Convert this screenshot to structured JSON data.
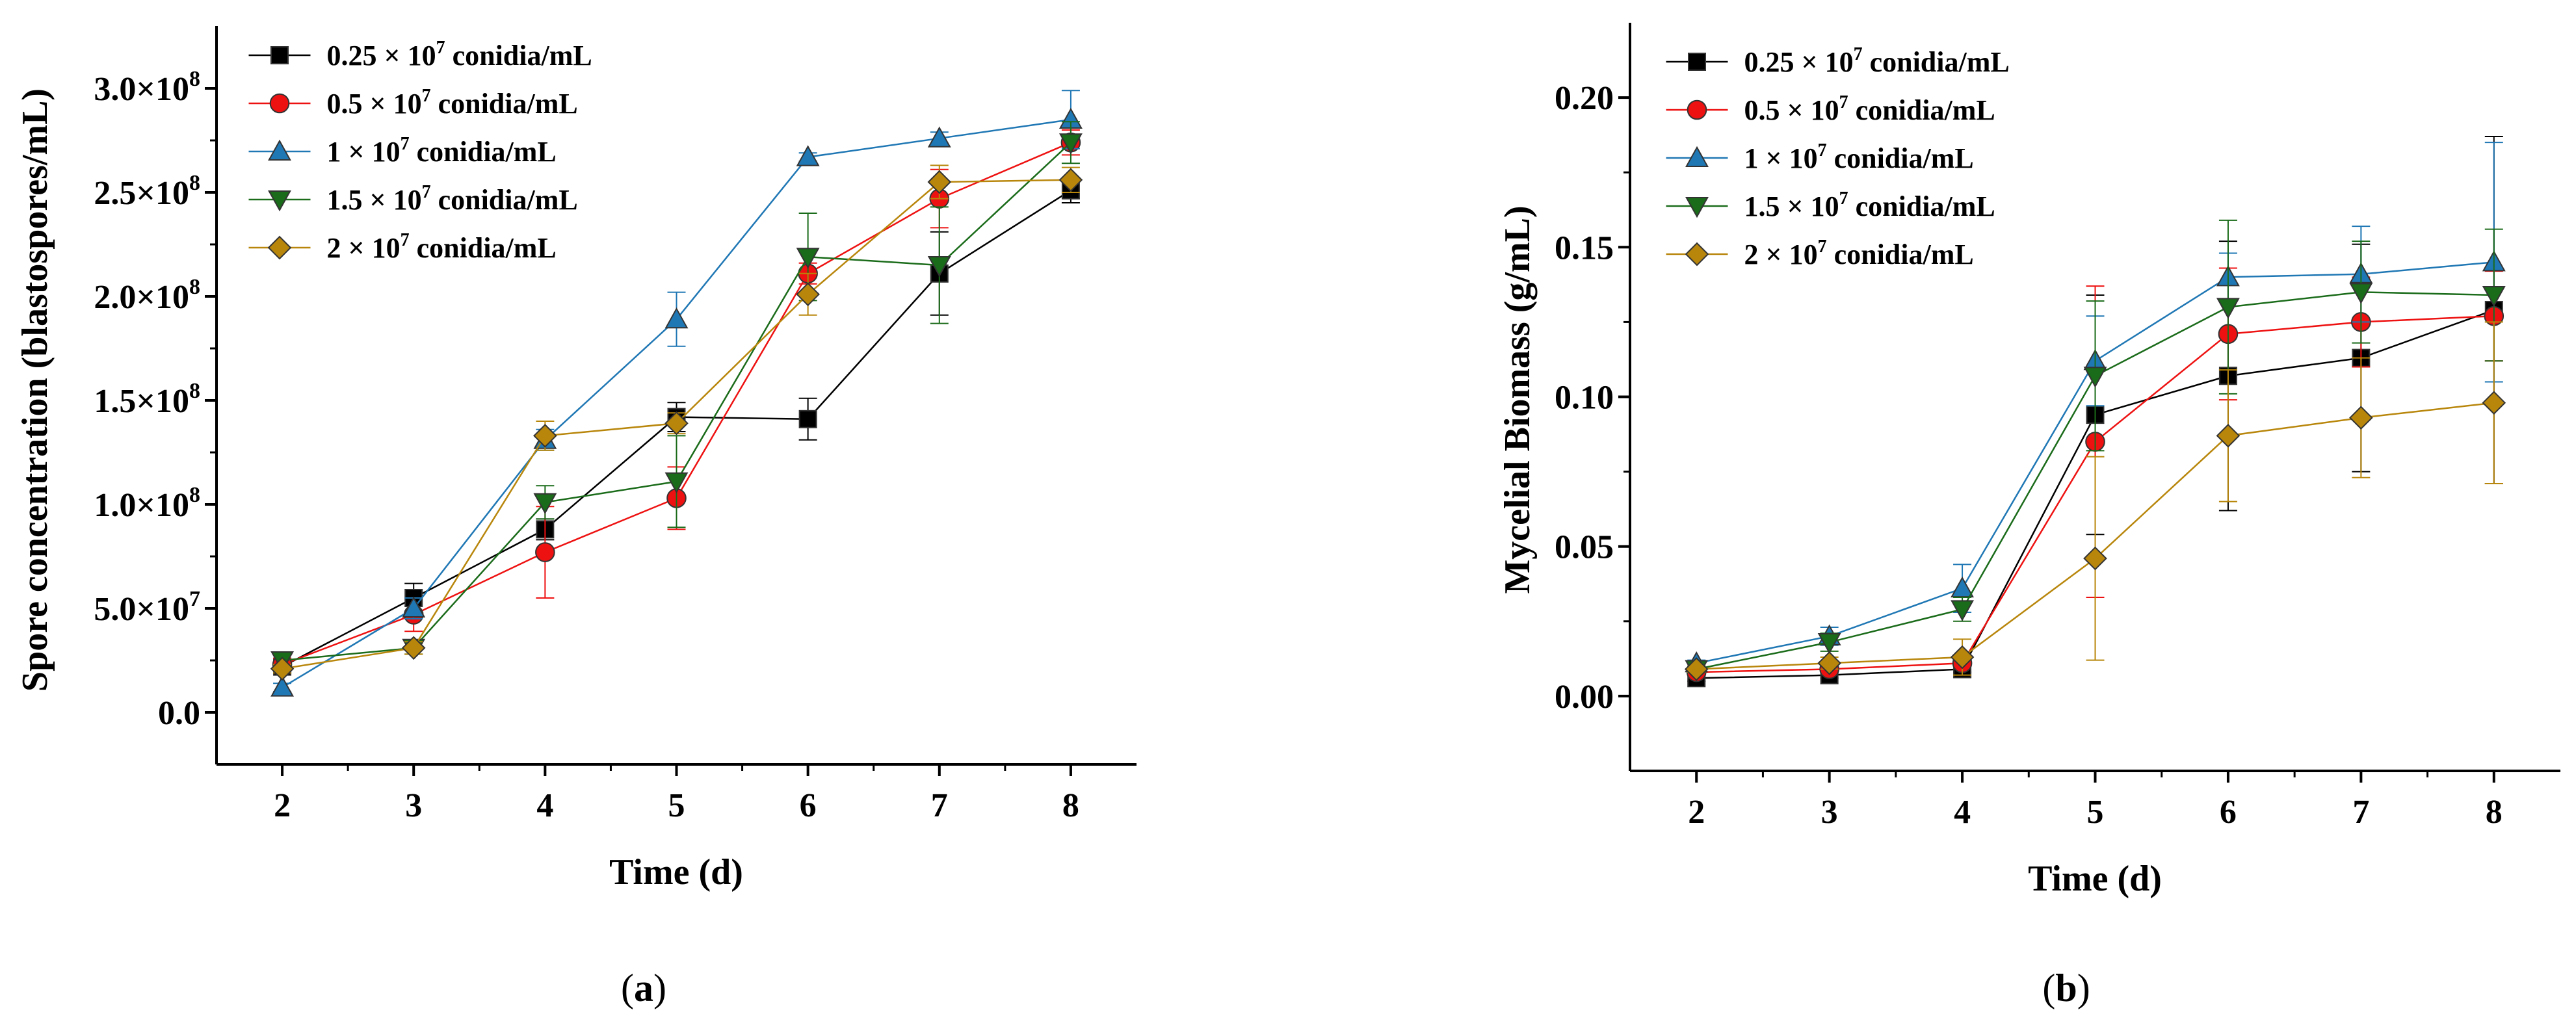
{
  "chart_data": [
    {
      "type": "line",
      "panel_label": "a",
      "xlabel": "Time (d)",
      "ylabel": "Spore concentration (blastospores/mL)",
      "x": [
        2,
        3,
        4,
        5,
        6,
        7,
        8
      ],
      "xlim": [
        1.5,
        8.5
      ],
      "ylim": [
        -25000000.0,
        330000000.0
      ],
      "yticks": [
        0,
        50000000,
        100000000,
        150000000,
        200000000,
        250000000,
        300000000
      ],
      "ytick_labels": [
        "0.0",
        "5.0×10",
        "1.0×10",
        "1.5×10",
        "2.0×10",
        "2.5×10",
        "3.0×10"
      ],
      "ytick_exponents": [
        "",
        "7",
        "8",
        "8",
        "8",
        "8",
        "8"
      ],
      "legend": [
        "0.25 × 10",
        "0.5 × 10",
        "1 × 10",
        "1.5 × 10",
        "2 × 10"
      ],
      "legend_sup": "7",
      "legend_suffix": "conidia/mL",
      "series": [
        {
          "name": "0.25 × 10^7 conidia/mL",
          "color": "#000000",
          "marker": "square",
          "values": [
            22000000,
            55000000,
            88000000,
            142000000,
            141000000,
            211000000,
            251000000
          ],
          "errors": [
            3000000,
            7000000,
            5000000,
            7000000,
            10000000,
            20000000,
            6000000
          ]
        },
        {
          "name": "0.5 × 10^7 conidia/mL",
          "color": "#ee1111",
          "marker": "circle",
          "values": [
            23000000,
            47000000,
            77000000,
            103000000,
            211000000,
            247000000,
            274000000
          ],
          "errors": [
            3000000,
            8000000,
            22000000,
            15000000,
            5000000,
            14000000,
            6000000
          ]
        },
        {
          "name": "1 × 10^7 conidia/mL",
          "color": "#1f77b4",
          "marker": "triangle-up",
          "values": [
            12000000,
            50000000,
            131000000,
            189000000,
            267000000,
            276000000,
            285000000
          ],
          "errors": [
            2000000,
            5000000,
            5000000,
            13000000,
            2000000,
            3000000,
            14000000
          ]
        },
        {
          "name": "1.5 × 10^7 conidia/mL",
          "color": "#1a6b1a",
          "marker": "triangle-down",
          "values": [
            25000000,
            31000000,
            101000000,
            111000000,
            219000000,
            215000000,
            274000000
          ],
          "errors": [
            3000000,
            3000000,
            8000000,
            22000000,
            21000000,
            28000000,
            10000000
          ]
        },
        {
          "name": "2 × 10^7 conidia/mL",
          "color": "#b8860b",
          "marker": "diamond",
          "values": [
            21000000,
            31000000,
            133000000,
            139000000,
            201000000,
            255000000,
            256000000
          ],
          "errors": [
            2000000,
            3000000,
            7000000,
            5000000,
            10000000,
            8000000,
            6000000
          ]
        }
      ]
    },
    {
      "type": "line",
      "panel_label": "b",
      "xlabel": "Time (d)",
      "ylabel": "Mycelial Biomass (g/mL)",
      "x": [
        2,
        3,
        4,
        5,
        6,
        7,
        8
      ],
      "xlim": [
        1.5,
        8.5
      ],
      "ylim": [
        -0.025,
        0.225
      ],
      "yticks": [
        0,
        0.05,
        0.1,
        0.15,
        0.2
      ],
      "ytick_labels": [
        "0.00",
        "0.05",
        "0.10",
        "0.15",
        "0.20"
      ],
      "legend": [
        "0.25 × 10",
        "0.5 × 10",
        "1 × 10",
        "1.5 × 10",
        "2 × 10"
      ],
      "legend_sup": "7",
      "legend_suffix": "conidia/mL",
      "series": [
        {
          "name": "0.25 × 10^7 conidia/mL",
          "color": "#000000",
          "marker": "square",
          "values": [
            0.006,
            0.007,
            0.009,
            0.094,
            0.107,
            0.113,
            0.129
          ],
          "errors": [
            0.001,
            0.001,
            0.001,
            0.04,
            0.045,
            0.038,
            0.058
          ]
        },
        {
          "name": "0.5 × 10^7 conidia/mL",
          "color": "#ee1111",
          "marker": "circle",
          "values": [
            0.008,
            0.009,
            0.011,
            0.085,
            0.121,
            0.125,
            0.127
          ],
          "errors": [
            0.001,
            0.001,
            0.001,
            0.052,
            0.022,
            0.015,
            0.015
          ]
        },
        {
          "name": "1 × 10^7 conidia/mL",
          "color": "#1f77b4",
          "marker": "triangle-up",
          "values": [
            0.011,
            0.02,
            0.036,
            0.112,
            0.14,
            0.141,
            0.145
          ],
          "errors": [
            0.001,
            0.003,
            0.008,
            0.015,
            0.008,
            0.016,
            0.04
          ]
        },
        {
          "name": "1.5 × 10^7 conidia/mL",
          "color": "#1a6b1a",
          "marker": "triangle-down",
          "values": [
            0.009,
            0.018,
            0.029,
            0.107,
            0.13,
            0.135,
            0.134
          ],
          "errors": [
            0.001,
            0.003,
            0.004,
            0.025,
            0.029,
            0.017,
            0.022
          ]
        },
        {
          "name": "2 × 10^7 conidia/mL",
          "color": "#b8860b",
          "marker": "diamond",
          "values": [
            0.009,
            0.011,
            0.013,
            0.046,
            0.087,
            0.093,
            0.098
          ],
          "errors": [
            0.001,
            0.002,
            0.006,
            0.034,
            0.022,
            0.02,
            0.027
          ]
        }
      ]
    }
  ]
}
